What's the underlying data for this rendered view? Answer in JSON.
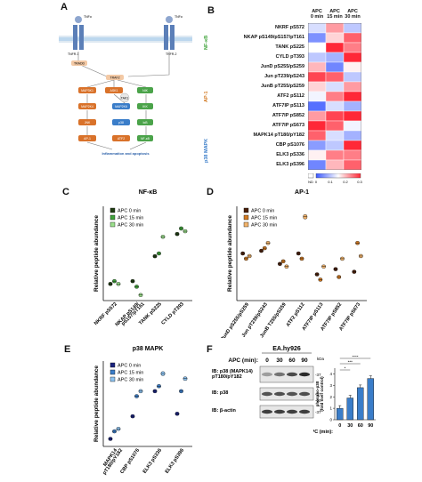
{
  "panels": {
    "A": {
      "letter": "A",
      "receptors": [
        "TNFα",
        "TNFα"
      ],
      "receptor_subs": [
        "TNFR-1",
        "TNFR-2"
      ],
      "nodes": [
        "TRADD",
        "TRAF2",
        "MAP3K1",
        "ASK1",
        "TAK1",
        "TAB2",
        "NIK",
        "MAP2K4",
        "MAP2K6",
        "IKK",
        "JNK",
        "p38",
        "IκB",
        "AP-1",
        "ATF2",
        "NF-κB"
      ],
      "outcome": "Inflammation and apoptosis"
    },
    "B": {
      "letter": "B",
      "col_headers": [
        "APC\n0 min",
        "APC\n15 min",
        "APC\n30 min"
      ],
      "groups": [
        "NF-κB",
        "AP-1",
        "p38 MAPK"
      ],
      "group_colors": {
        "NF-κB": "#3fa33a",
        "AP-1": "#d27a22",
        "p38 MAPK": "#3a7dc9"
      },
      "rows": [
        "NKRF pS572",
        "NKAP pS149/pS157/pT161",
        "TANK pS225",
        "CYLD pT393",
        "JunD pS255/pS259",
        "Jun pT239/pS243",
        "JunB pT255/pS259",
        "ATF2 pS112",
        "ATF7IP pS113",
        "ATF7IP pS852",
        "ATF7IP pS673",
        "MAPK14 pT180/pY182",
        "CBP pS1076",
        "ELK3 pS336",
        "ELK3 pS396"
      ],
      "scale_ticks": [
        "ND",
        "0",
        "0.1",
        "0.2",
        "0.3"
      ],
      "heat": [
        [
          0.12,
          0.22,
          0.1
        ],
        [
          0.05,
          0.18,
          0.26
        ],
        [
          0.15,
          0.3,
          0.24
        ],
        [
          0.1,
          0.08,
          0.3
        ],
        [
          0.2,
          0.04,
          0.16
        ],
        [
          0.28,
          0.26,
          0.1
        ],
        [
          0.18,
          0.12,
          0.22
        ],
        [
          0.14,
          0.24,
          0.3
        ],
        [
          0.02,
          0.12,
          0.08
        ],
        [
          0.22,
          0.28,
          0.3
        ],
        [
          0.3,
          0.26,
          0.14
        ],
        [
          0.26,
          0.12,
          0.08
        ],
        [
          0.06,
          0.1,
          0.3
        ],
        [
          0.16,
          0.24,
          0.24
        ],
        [
          0.04,
          0.2,
          0.26
        ]
      ]
    },
    "C": {
      "letter": "C",
      "title": "NF-κB",
      "ylabel": "Relative peptide abundance",
      "legend": [
        "APC 0 min",
        "APC 15 min",
        "APC 30 min"
      ],
      "colors": [
        "#1f3d12",
        "#3fa33a",
        "#9be08c"
      ],
      "categories": [
        "NKRF pS572",
        "NKAP pS149/\npS157/pT161",
        "TANK pS225",
        "CYLD pT393"
      ]
    },
    "D": {
      "letter": "D",
      "title": "AP-1",
      "ylabel": "Relative peptide abundance",
      "legend": [
        "APC 0 min",
        "APC 15 min",
        "APC 30 min"
      ],
      "colors": [
        "#4a1f0a",
        "#d27a22",
        "#f2b36a"
      ],
      "categories": [
        "JunD pS255/pS259",
        "Jun pT239/pS243",
        "JunB T255/pS259",
        "ATF2 pS112",
        "ATF7IP pS113",
        "ATF7IP pS852",
        "ATF7IP pS673"
      ]
    },
    "E": {
      "letter": "E",
      "title": "p38 MAPK",
      "ylabel": "Relative peptide abundance",
      "legend": [
        "APC 0 min",
        "APC 15 min",
        "APC 30 min"
      ],
      "colors": [
        "#1a237e",
        "#3a7dc9",
        "#8cc3f2"
      ],
      "categories": [
        "MAPK14\npT180/pY182",
        "CBP pS1076",
        "ELK3 pS336",
        "ELK3 pS396"
      ]
    },
    "F": {
      "letter": "F",
      "cell_line": "EA.hy926",
      "apc_label": "APC (min):",
      "times": [
        "0",
        "30",
        "60",
        "90"
      ],
      "kda": "kDa",
      "blots": [
        {
          "label": "IB: p38 (MAPK14)\npT180/pY182",
          "marker": "37"
        },
        {
          "label": "IB: p38",
          "marker": "37"
        },
        {
          "label": "IB: β-actin",
          "marker": "37"
        }
      ],
      "marker_50": "50",
      "bar_ylabel": "phospho-p38\n(fold over control)",
      "bar_ylabel_lines": [
        "phospho-p38",
        "(fold over control)"
      ],
      "sig": [
        "*",
        "***",
        "****"
      ]
    }
  },
  "chart_data": [
    {
      "type": "heatmap",
      "title": "",
      "rows": [
        "NKRF pS572",
        "NKAP pS149/pS157/pT161",
        "TANK pS225",
        "CYLD pT393",
        "JunD pS255/pS259",
        "Jun pT239/pS243",
        "JunB pT255/pS259",
        "ATF2 pS112",
        "ATF7IP pS113",
        "ATF7IP pS852",
        "ATF7IP pS673",
        "MAPK14 pT180/pY182",
        "CBP pS1076",
        "ELK3 pS336",
        "ELK3 pS396"
      ],
      "columns": [
        "APC 0 min",
        "APC 15 min",
        "APC 30 min"
      ],
      "range": [
        0,
        0.3
      ]
    },
    {
      "type": "scatter",
      "title": "NF-κB",
      "ylabel": "Relative peptide abundance",
      "categories": [
        "NKRF pS572",
        "NKAP pS149/pS157/pT161",
        "TANK pS225",
        "CYLD pT393"
      ],
      "series": [
        {
          "name": "APC 0 min",
          "values": [
            0.06,
            0.07,
            0.16,
            0.24
          ]
        },
        {
          "name": "APC 15 min",
          "values": [
            0.07,
            0.05,
            0.17,
            0.26
          ]
        },
        {
          "name": "APC 30 min",
          "values": [
            0.06,
            0.02,
            0.23,
            0.25
          ]
        }
      ]
    },
    {
      "type": "scatter",
      "title": "AP-1",
      "ylabel": "Relative peptide abundance",
      "categories": [
        "JunD pS255/pS259",
        "Jun pT239/pS243",
        "JunB T255/pS259",
        "ATF2 pS112",
        "ATF7IP pS113",
        "ATF7IP pS852",
        "ATF7IP pS673"
      ],
      "series": [
        {
          "name": "APC 0 min",
          "values": [
            0.18,
            0.19,
            0.14,
            0.18,
            0.1,
            0.12,
            0.11
          ]
        },
        {
          "name": "APC 15 min",
          "values": [
            0.16,
            0.2,
            0.15,
            0.16,
            0.08,
            0.09,
            0.22
          ]
        },
        {
          "name": "APC 30 min",
          "values": [
            0.17,
            0.22,
            0.13,
            0.32,
            0.13,
            0.16,
            0.17
          ]
        }
      ]
    },
    {
      "type": "scatter",
      "title": "p38 MAPK",
      "ylabel": "Relative peptide abundance",
      "categories": [
        "MAPK14 pT180/pY182",
        "CBP pS1076",
        "ELK3 pS336",
        "ELK3 pS396"
      ],
      "series": [
        {
          "name": "APC 0 min",
          "values": [
            0.03,
            0.12,
            0.22,
            0.13
          ]
        },
        {
          "name": "APC 15 min",
          "values": [
            0.06,
            0.2,
            0.24,
            0.22
          ]
        },
        {
          "name": "APC 30 min",
          "values": [
            0.07,
            0.22,
            0.29,
            0.27
          ]
        }
      ]
    },
    {
      "type": "bar",
      "title": "",
      "categories": [
        "0",
        "30",
        "60",
        "90"
      ],
      "values": [
        1.0,
        1.9,
        2.8,
        3.6
      ],
      "ylabel": "phospho-p38 (fold over control)"
    }
  ]
}
